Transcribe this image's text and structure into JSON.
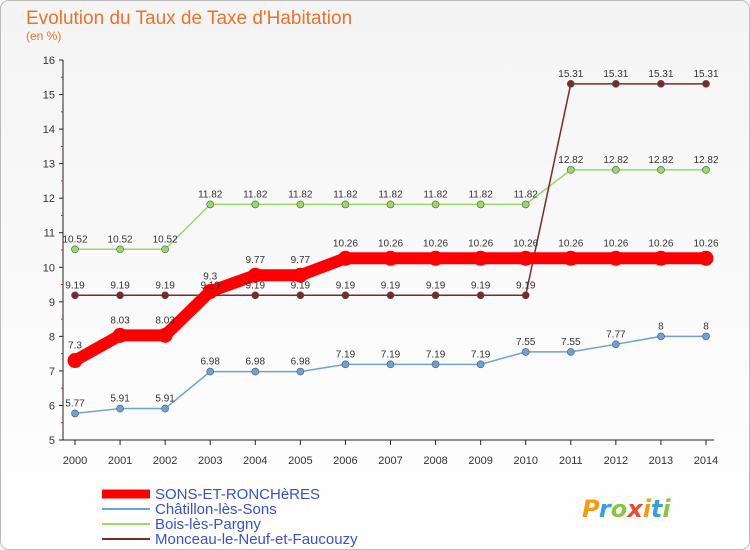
{
  "chart_data": {
    "type": "line",
    "title": "Evolution du Taux de Taxe d'Habitation",
    "subtitle": "(en %)",
    "x": [
      "2000",
      "2001",
      "2002",
      "2003",
      "2004",
      "2005",
      "2006",
      "2007",
      "2008",
      "2009",
      "2010",
      "2011",
      "2012",
      "2013",
      "2014"
    ],
    "ylim": [
      5,
      16
    ],
    "yticks": [
      "5",
      "6",
      "7",
      "8",
      "9",
      "10",
      "11",
      "12",
      "13",
      "14",
      "15",
      "16"
    ],
    "grid": false,
    "legend": "bottom-left",
    "series": [
      {
        "name": "SONS-ET-RONCHèRES",
        "color": "#ff0000",
        "values": [
          7.3,
          8.03,
          8.03,
          9.3,
          9.77,
          9.77,
          10.26,
          10.26,
          10.26,
          10.26,
          10.26,
          10.26,
          10.26,
          10.26,
          10.26
        ],
        "labels": [
          "7.3",
          "8.03",
          "8.03",
          "9.3",
          "9.77",
          "9.77",
          "10.26",
          "10.26",
          "10.26",
          "10.26",
          "10.26",
          "10.26",
          "10.26",
          "10.26",
          "10.26"
        ]
      },
      {
        "name": "Châtillon-lès-Sons",
        "color": "#6fa0d6",
        "values": [
          5.77,
          5.91,
          5.91,
          6.98,
          6.98,
          6.98,
          7.19,
          7.19,
          7.19,
          7.19,
          7.55,
          7.55,
          7.77,
          8,
          8
        ],
        "labels": [
          "5.77",
          "5.91",
          "5.91",
          "6.98",
          "6.98",
          "6.98",
          "7.19",
          "7.19",
          "7.19",
          "7.19",
          "7.55",
          "7.55",
          "7.77",
          "8",
          "8"
        ]
      },
      {
        "name": "Bois-lès-Pargny",
        "color": "#9ad86a",
        "values": [
          10.52,
          10.52,
          10.52,
          11.82,
          11.82,
          11.82,
          11.82,
          11.82,
          11.82,
          11.82,
          11.82,
          12.82,
          12.82,
          12.82,
          12.82
        ],
        "labels": [
          "10.52",
          "10.52",
          "10.52",
          "11.82",
          "11.82",
          "11.82",
          "11.82",
          "11.82",
          "11.82",
          "11.82",
          "11.82",
          "12.82",
          "12.82",
          "12.82",
          "12.82"
        ]
      },
      {
        "name": "Monceau-le-Neuf-et-Faucouzy",
        "color": "#7a2a2a",
        "values": [
          9.19,
          9.19,
          9.19,
          9.19,
          9.19,
          9.19,
          9.19,
          9.19,
          9.19,
          9.19,
          9.19,
          15.31,
          15.31,
          15.31,
          15.31
        ],
        "labels": [
          "9.19",
          "9.19",
          "9.19",
          "9.19",
          "9.19",
          "9.19",
          "9.19",
          "9.19",
          "9.19",
          "9.19",
          "9.19",
          "15.31",
          "15.31",
          "15.31",
          "15.31"
        ]
      }
    ]
  },
  "logo": {
    "text": "Proxiti",
    "colors": [
      "#f39c12",
      "#3aa0dc",
      "#8bc34a",
      "#e74c3c"
    ]
  }
}
